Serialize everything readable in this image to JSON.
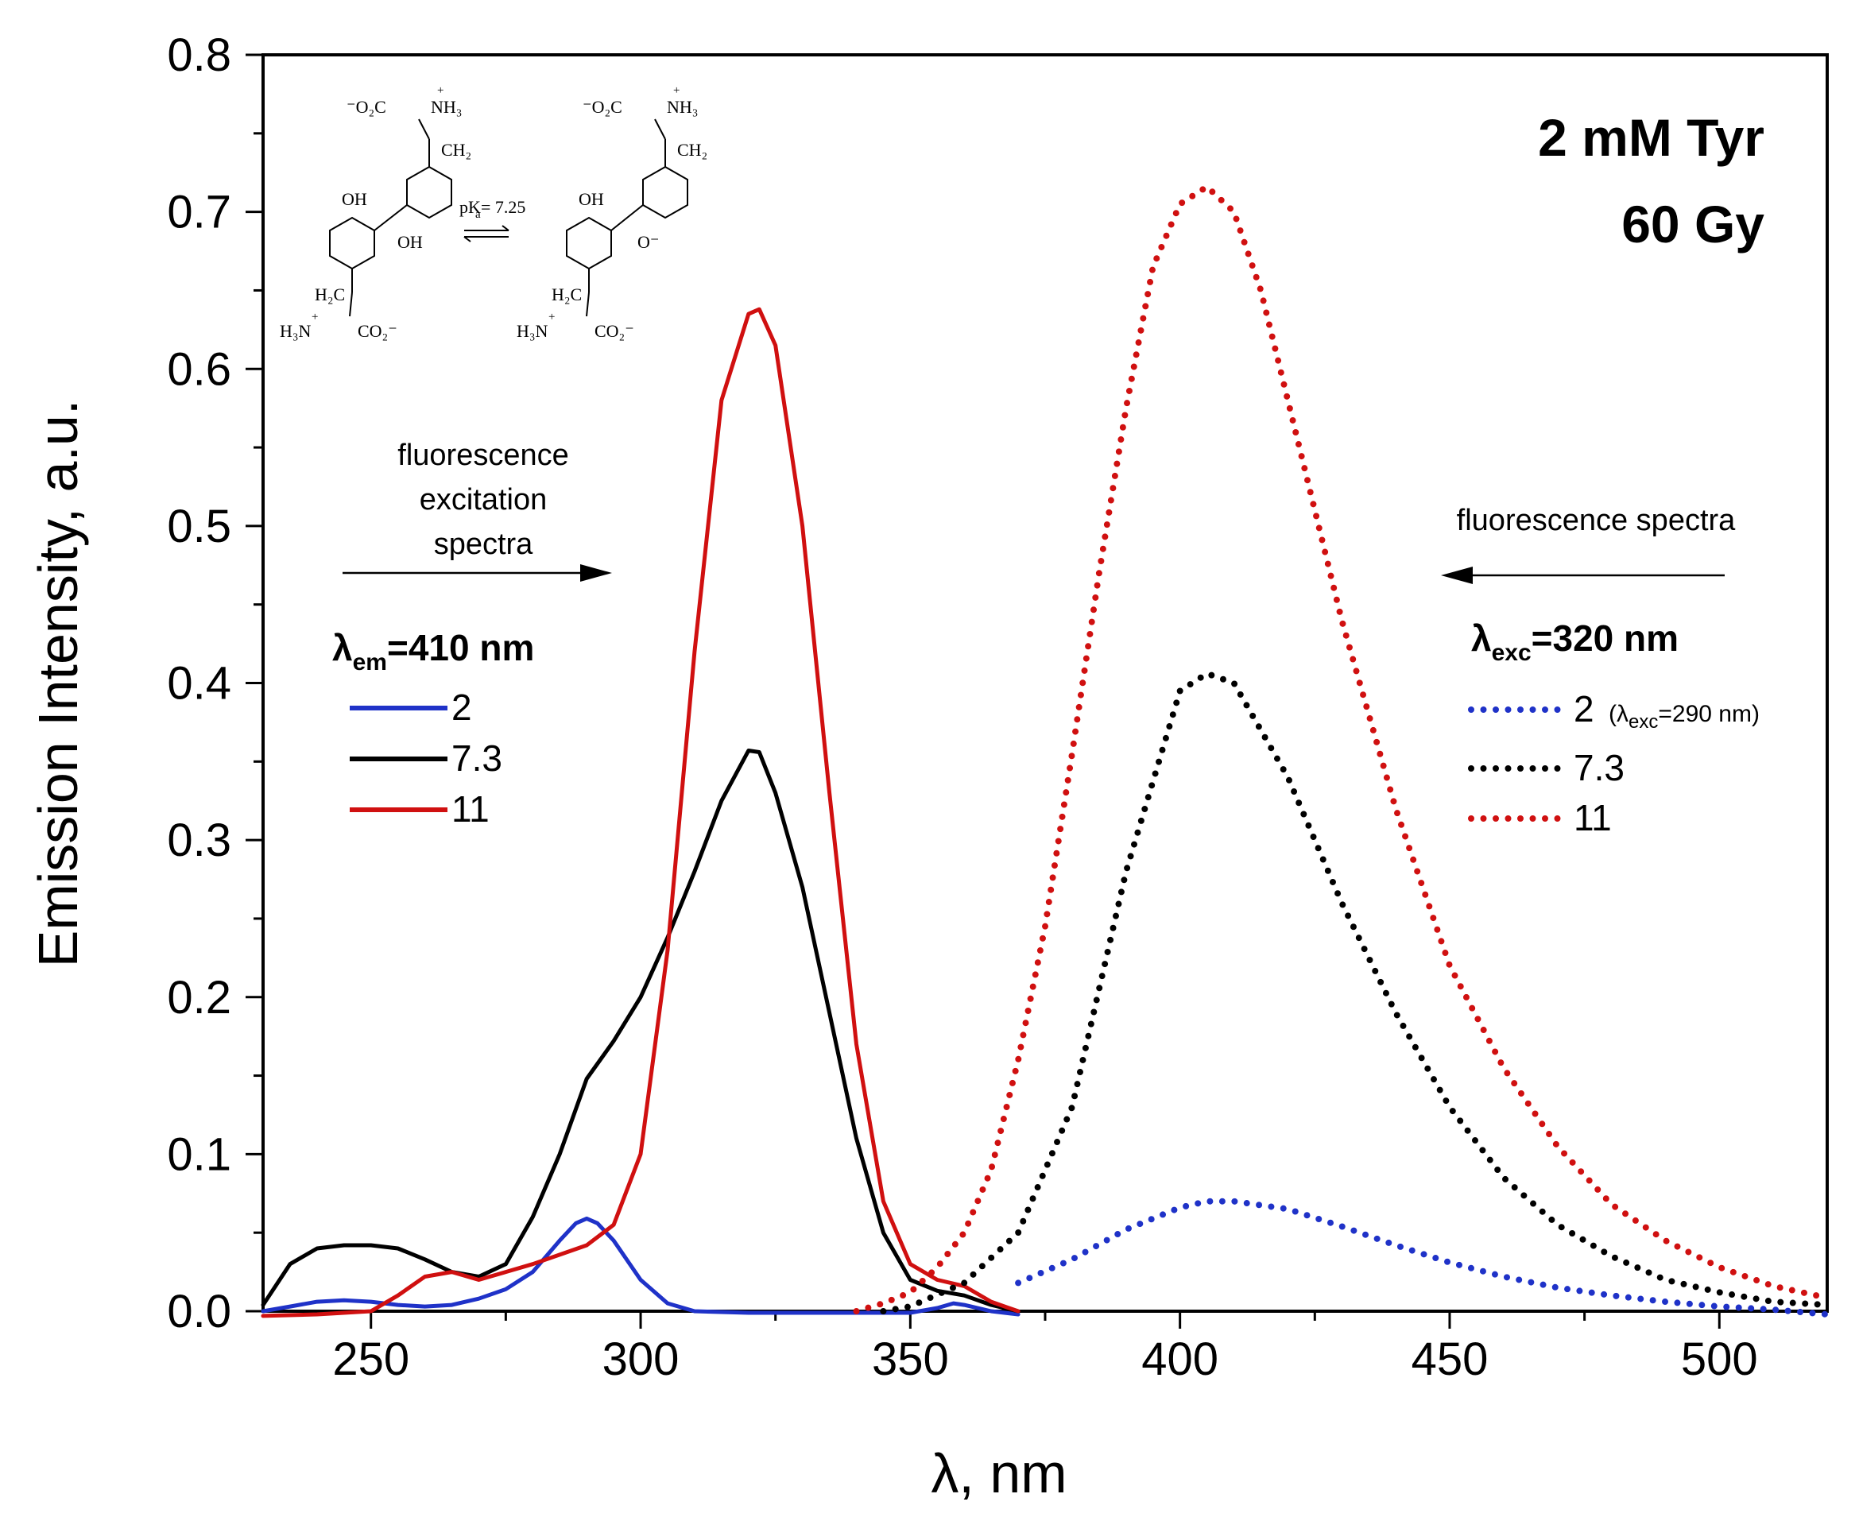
{
  "chart_data": {
    "type": "line",
    "title_line1": "2 mM Tyr",
    "title_line2": "60 Gy",
    "xlabel": "λ, nm",
    "ylabel": "Emission Intensity, a.u.",
    "xlim": [
      230,
      520
    ],
    "ylim": [
      0,
      0.8
    ],
    "xticks": [
      250,
      300,
      350,
      400,
      450,
      500
    ],
    "yticks": [
      0.0,
      0.1,
      0.2,
      0.3,
      0.4,
      0.5,
      0.6,
      0.7,
      0.8
    ],
    "xtick_labels": [
      "250",
      "300",
      "350",
      "400",
      "450",
      "500"
    ],
    "ytick_labels": [
      "0.0",
      "0.1",
      "0.2",
      "0.3",
      "0.4",
      "0.5",
      "0.6",
      "0.7",
      "0.8"
    ],
    "annotations": {
      "excitation_lines": [
        "fluorescence",
        "excitation",
        "spectra"
      ],
      "emission": "fluorescence spectra"
    },
    "legend_excitation": {
      "title_prefix": "λ",
      "title_sub": "em",
      "title_suffix": "=410 nm",
      "entries": [
        "2",
        "7.3",
        "11"
      ]
    },
    "legend_emission": {
      "title_prefix": "λ",
      "title_sub": "exc",
      "title_suffix": "=320 nm",
      "entries": [
        "2",
        "7.3",
        "11"
      ],
      "note_prefix": "(λ",
      "note_sub": "exc",
      "note_suffix": "=290 nm)"
    },
    "structure_labels": {
      "pka_prefix": "pK",
      "pka_sub": "a",
      "pka_suffix": " = 7.25",
      "carboxylate_top": "⁻O₂C",
      "amine_top": "NH₃",
      "ch2": "CH₂",
      "oh": "OH",
      "o_minus": "O⁻",
      "h2c": "H₂C",
      "h3n": "H₃N",
      "carboxylate_bottom": "CO₂⁻",
      "plus": "+"
    },
    "colors": {
      "blue": "#1f32c8",
      "black": "#000000",
      "red": "#d01010"
    },
    "series": [
      {
        "name": "2",
        "group": "excitation",
        "style": "solid",
        "color": "#1f32c8",
        "x": [
          230,
          235,
          240,
          245,
          250,
          255,
          260,
          265,
          270,
          275,
          280,
          285,
          288,
          290,
          292,
          295,
          300,
          305,
          310,
          320,
          330,
          340,
          350,
          355,
          358,
          360,
          365,
          370
        ],
        "y": [
          0.0,
          0.003,
          0.006,
          0.007,
          0.006,
          0.004,
          0.003,
          0.004,
          0.008,
          0.014,
          0.025,
          0.045,
          0.056,
          0.059,
          0.056,
          0.045,
          0.02,
          0.005,
          0.0,
          -0.001,
          -0.001,
          -0.001,
          -0.001,
          0.002,
          0.005,
          0.004,
          0.0,
          -0.002
        ]
      },
      {
        "name": "7.3",
        "group": "excitation",
        "style": "solid",
        "color": "#000000",
        "x": [
          230,
          235,
          240,
          245,
          250,
          255,
          260,
          265,
          270,
          275,
          280,
          285,
          290,
          295,
          300,
          305,
          310,
          315,
          320,
          322,
          325,
          330,
          335,
          340,
          345,
          350,
          355,
          360,
          365,
          370
        ],
        "y": [
          0.004,
          0.03,
          0.04,
          0.042,
          0.042,
          0.04,
          0.033,
          0.025,
          0.022,
          0.03,
          0.06,
          0.1,
          0.148,
          0.172,
          0.2,
          0.238,
          0.28,
          0.325,
          0.357,
          0.356,
          0.33,
          0.27,
          0.19,
          0.11,
          0.05,
          0.02,
          0.013,
          0.01,
          0.004,
          0.0
        ]
      },
      {
        "name": "11",
        "group": "excitation",
        "style": "solid",
        "color": "#d01010",
        "x": [
          230,
          240,
          250,
          255,
          260,
          265,
          270,
          275,
          280,
          285,
          290,
          295,
          300,
          305,
          310,
          315,
          320,
          322,
          325,
          330,
          335,
          340,
          345,
          350,
          355,
          360,
          365,
          370
        ],
        "y": [
          -0.003,
          -0.002,
          0.0,
          0.01,
          0.022,
          0.025,
          0.02,
          0.025,
          0.03,
          0.036,
          0.042,
          0.055,
          0.1,
          0.23,
          0.42,
          0.58,
          0.635,
          0.638,
          0.615,
          0.5,
          0.33,
          0.17,
          0.07,
          0.03,
          0.02,
          0.016,
          0.006,
          0.0
        ]
      },
      {
        "name": "2",
        "group": "emission",
        "style": "dotted",
        "color": "#1f32c8",
        "x": [
          370,
          380,
          390,
          400,
          405,
          410,
          420,
          430,
          440,
          450,
          460,
          470,
          480,
          490,
          500,
          510,
          520
        ],
        "y": [
          0.018,
          0.033,
          0.052,
          0.066,
          0.07,
          0.07,
          0.065,
          0.054,
          0.042,
          0.031,
          0.022,
          0.015,
          0.01,
          0.006,
          0.003,
          0.001,
          -0.002
        ]
      },
      {
        "name": "7.3",
        "group": "emission",
        "style": "dotted",
        "color": "#000000",
        "x": [
          345,
          350,
          360,
          370,
          380,
          390,
          400,
          405,
          410,
          420,
          430,
          440,
          450,
          460,
          470,
          480,
          490,
          500,
          510,
          520
        ],
        "y": [
          0.0,
          0.003,
          0.018,
          0.05,
          0.13,
          0.28,
          0.395,
          0.406,
          0.4,
          0.34,
          0.26,
          0.19,
          0.13,
          0.085,
          0.055,
          0.035,
          0.02,
          0.012,
          0.006,
          0.004
        ]
      },
      {
        "name": "11",
        "group": "emission",
        "style": "dotted",
        "color": "#d01010",
        "x": [
          340,
          345,
          350,
          355,
          360,
          365,
          370,
          375,
          380,
          385,
          390,
          395,
          400,
          405,
          410,
          415,
          420,
          425,
          430,
          440,
          450,
          460,
          470,
          480,
          490,
          500,
          510,
          518
        ],
        "y": [
          0.0,
          0.005,
          0.012,
          0.028,
          0.05,
          0.09,
          0.16,
          0.245,
          0.355,
          0.47,
          0.575,
          0.665,
          0.705,
          0.716,
          0.7,
          0.65,
          0.58,
          0.51,
          0.44,
          0.32,
          0.22,
          0.155,
          0.105,
          0.068,
          0.045,
          0.028,
          0.016,
          0.01
        ]
      }
    ]
  }
}
